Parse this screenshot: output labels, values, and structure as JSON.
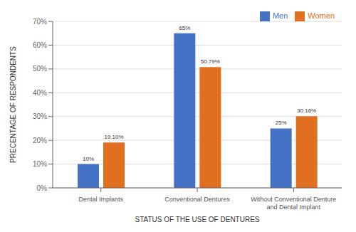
{
  "chart_data": {
    "type": "bar",
    "categories": [
      "Dental Implants",
      "Conventional Dentures",
      "Without Conventional Denture\nand Dental Implant"
    ],
    "series": [
      {
        "name": "Men",
        "color": "#4472C4",
        "values": [
          10,
          65,
          25
        ],
        "value_labels": [
          "10%",
          "65%",
          "25%"
        ]
      },
      {
        "name": "Women",
        "color": "#E07020",
        "values": [
          19.1,
          50.79,
          30.16
        ],
        "value_labels": [
          "19.10%",
          "50.79%",
          "30.16%"
        ]
      }
    ],
    "xlabel": "STATUS OF THE USE OF DENTURES",
    "ylabel": "PRECENTAGE OF RESPONDENTS",
    "ylim": [
      0,
      70
    ],
    "yticks": [
      {
        "value": 0,
        "label": "0%"
      },
      {
        "value": 10,
        "label": "10%"
      },
      {
        "value": 20,
        "label": "20%"
      },
      {
        "value": 30,
        "label": "30%"
      },
      {
        "value": 40,
        "label": "40%"
      },
      {
        "value": 50,
        "label": "50%"
      },
      {
        "value": 60,
        "label": "60%"
      },
      {
        "value": 70,
        "label": "70%"
      }
    ],
    "grid": true,
    "legend": "right",
    "data_labels": true
  }
}
